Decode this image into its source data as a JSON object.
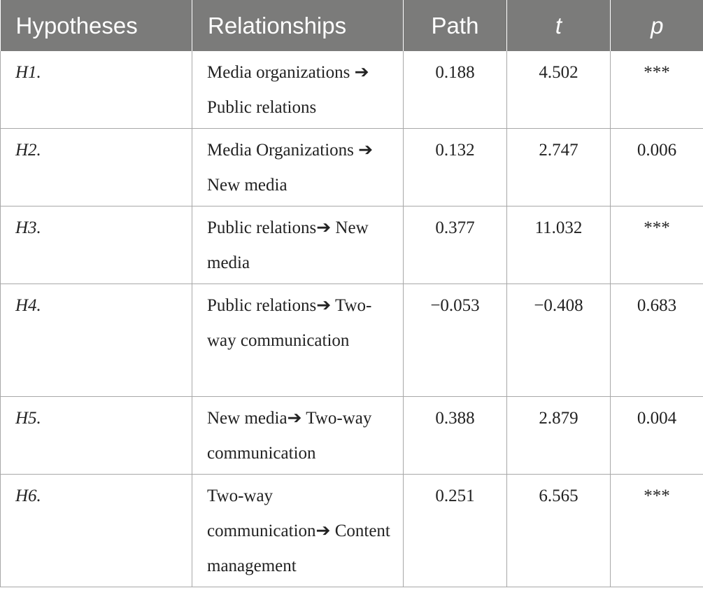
{
  "table": {
    "headers": {
      "hypotheses": "Hypotheses",
      "relationships": "Relationships",
      "path": "Path",
      "t": "t",
      "p": "p"
    },
    "rows": [
      {
        "hypothesis": "H1.",
        "relationship": "Media organizations ➔ Public relations",
        "path": "0.188",
        "t": "4.502",
        "p": "***"
      },
      {
        "hypothesis": "H2.",
        "relationship": "Media Organizations ➔ New media",
        "path": "0.132",
        "t": "2.747",
        "p": "0.006"
      },
      {
        "hypothesis": "H3.",
        "relationship": "Public relations➔ New media",
        "path": "0.377",
        "t": "11.032",
        "p": "***"
      },
      {
        "hypothesis": "H4.",
        "relationship": "Public relations➔ Two-way communication",
        "path": "−0.053",
        "t": "−0.408",
        "p": "0.683"
      },
      {
        "hypothesis": "H5.",
        "relationship": "New media➔ Two-way communication",
        "path": "0.388",
        "t": "2.879",
        "p": "0.004"
      },
      {
        "hypothesis": "H6.",
        "relationship": "Two-way communication➔ Content management",
        "path": "0.251",
        "t": "6.565",
        "p": "***"
      }
    ]
  }
}
